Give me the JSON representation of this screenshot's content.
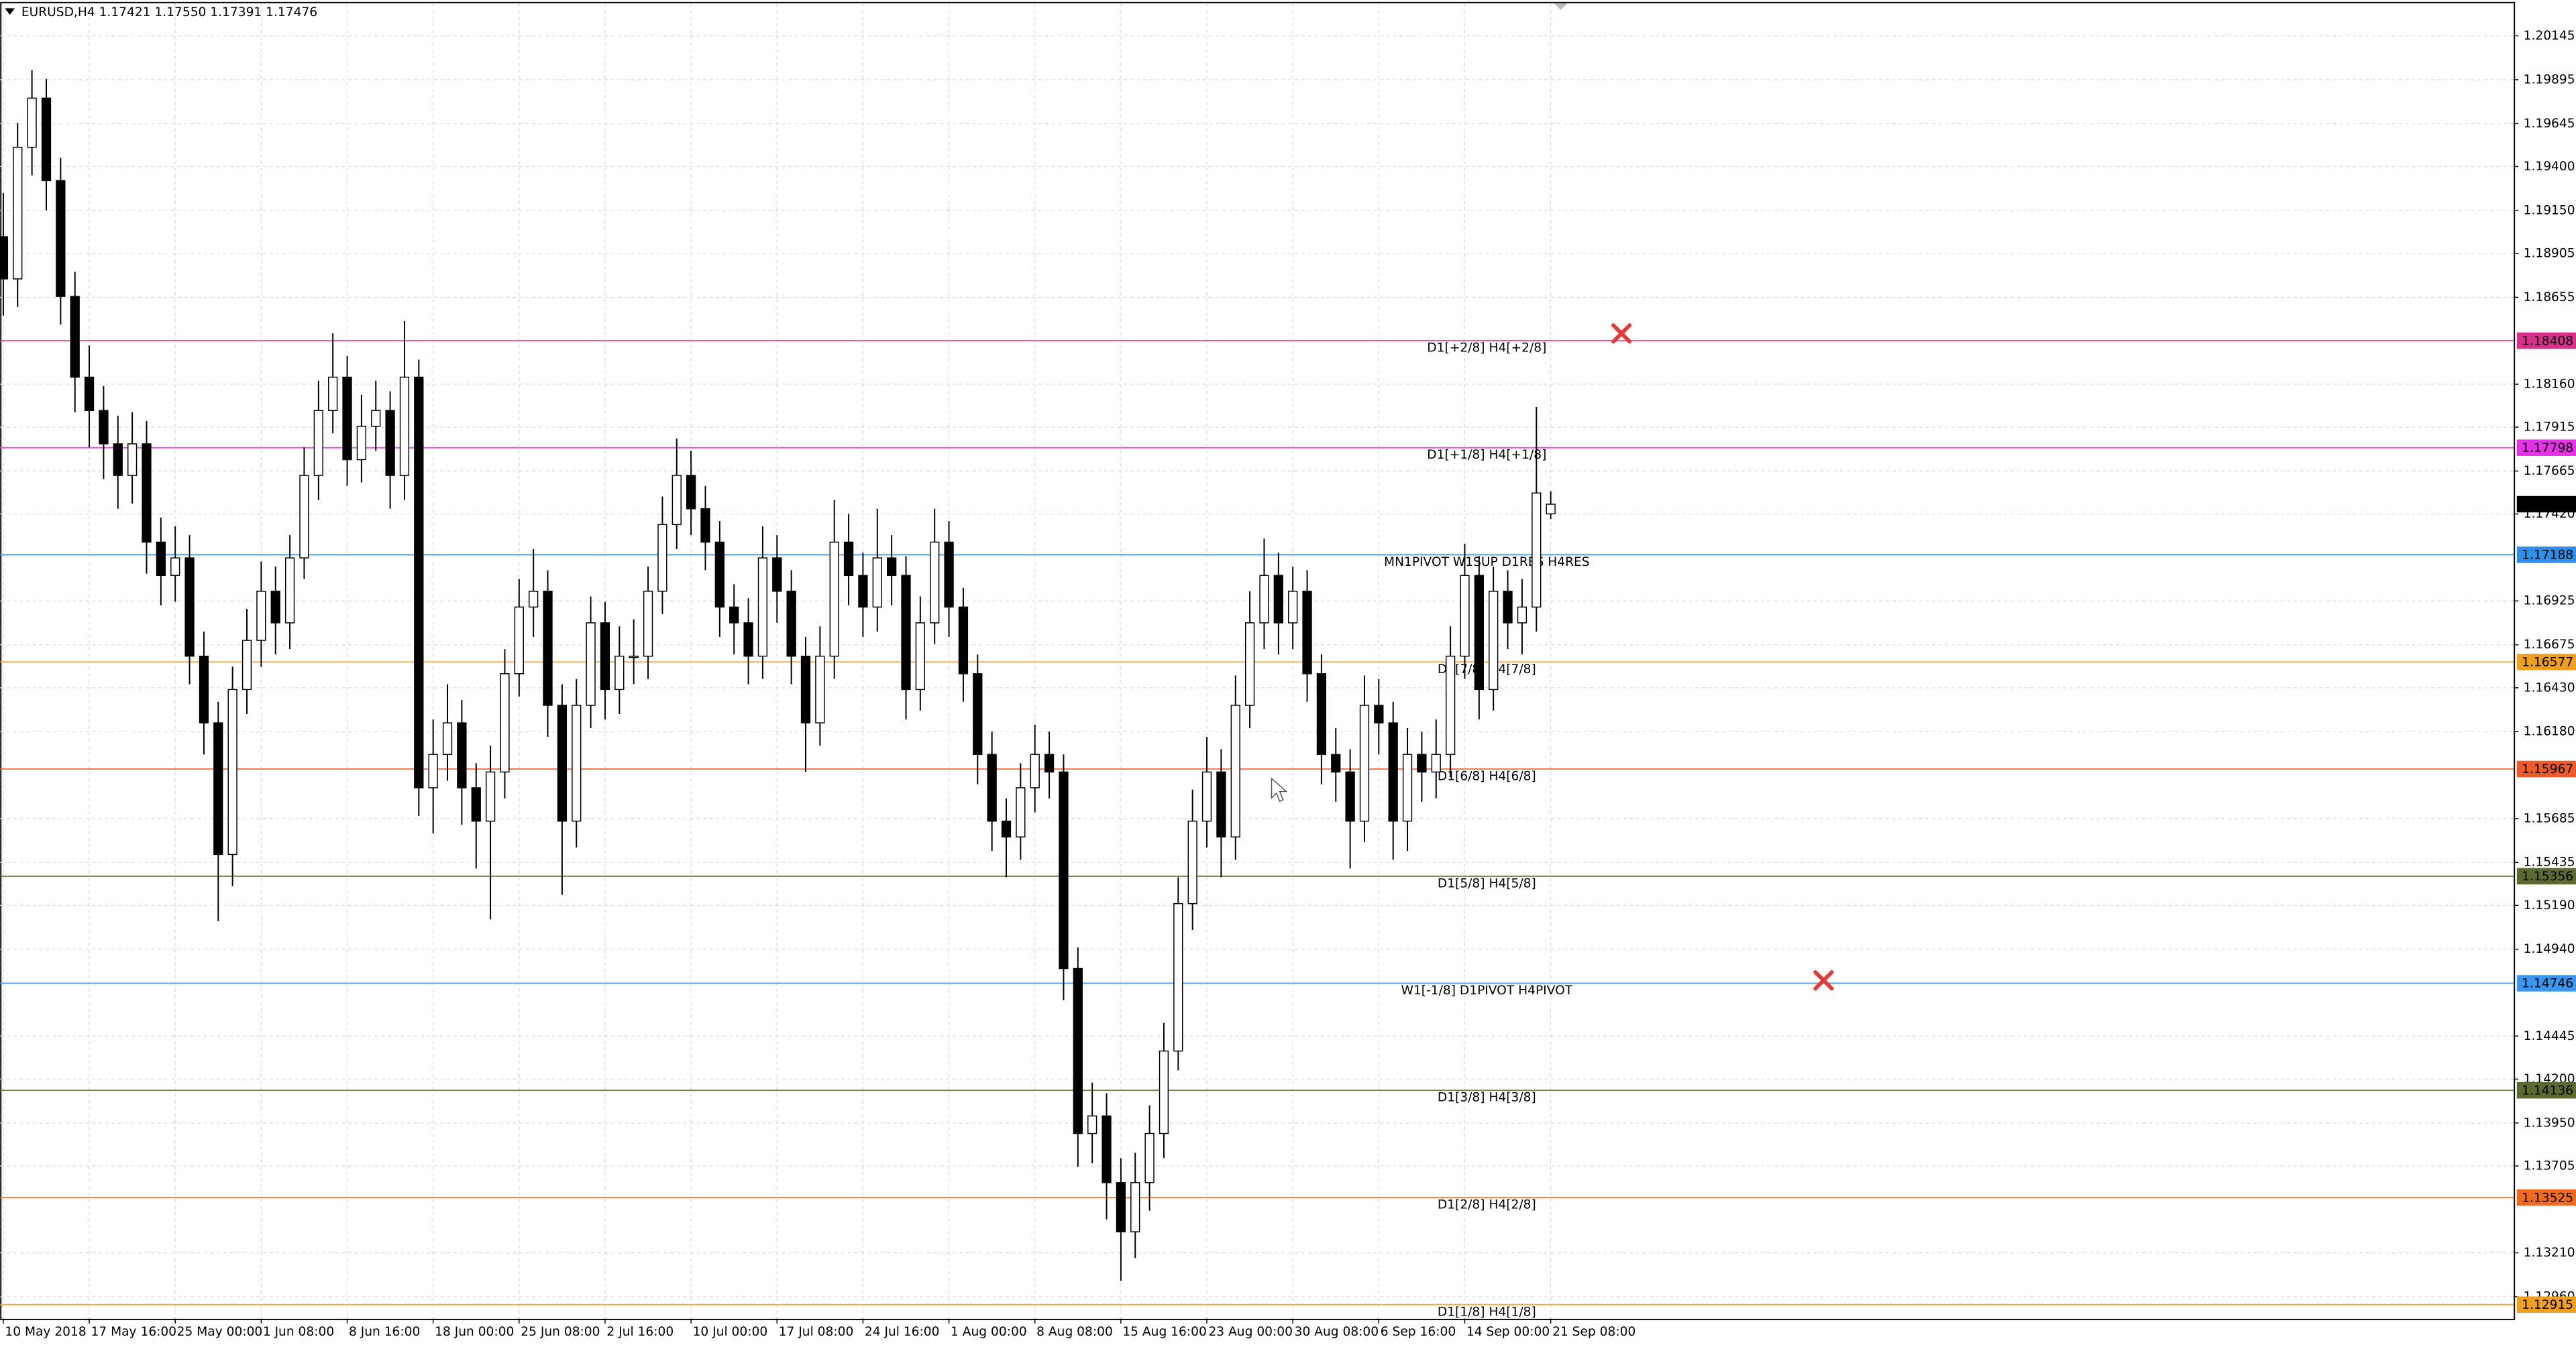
{
  "chart_data": {
    "type": "candlestick",
    "title": "EURUSD,H4  1.17421 1.17550 1.17391 1.17476",
    "open": [
      1.19,
      1.1876,
      1.1951,
      1.1979,
      1.1932,
      1.1866,
      1.182,
      1.1801,
      1.1782,
      1.1764,
      1.1782,
      1.1726,
      1.1707,
      1.1717,
      1.1661,
      1.1623,
      1.1548,
      1.1642,
      1.167,
      1.1698,
      1.168,
      1.1717,
      1.1764,
      1.1801,
      1.182,
      1.1773,
      1.1792,
      1.1801,
      1.1764,
      1.182,
      1.1586,
      1.1605,
      1.1623,
      1.1586,
      1.1567,
      1.1595,
      1.1651,
      1.1689,
      1.1698,
      1.1633,
      1.1567,
      1.1633,
      1.168,
      1.1642,
      1.1661,
      1.1661,
      1.1698,
      1.1736,
      1.1764,
      1.1745,
      1.1726,
      1.1689,
      1.168,
      1.1661,
      1.1717,
      1.1698,
      1.1661,
      1.1623,
      1.1661,
      1.1726,
      1.1707,
      1.1689,
      1.1717,
      1.1707,
      1.1642,
      1.168,
      1.1726,
      1.1689,
      1.1651,
      1.1605,
      1.1567,
      1.1558,
      1.1586,
      1.1605,
      1.1595,
      1.1483,
      1.1389,
      1.1399,
      1.1361,
      1.1333,
      1.1361,
      1.1389,
      1.1436,
      1.152,
      1.1567,
      1.1595,
      1.1558,
      1.1633,
      1.168,
      1.1707,
      1.168,
      1.1698,
      1.1651,
      1.1605,
      1.1595,
      1.1567,
      1.1633,
      1.1623,
      1.1567,
      1.1605,
      1.1595,
      1.1605,
      1.1661,
      1.1707,
      1.1642,
      1.1698,
      1.168,
      1.1689,
      1.17421
    ],
    "high": [
      1.1925,
      1.1965,
      1.1995,
      1.199,
      1.1945,
      1.188,
      1.1838,
      1.1815,
      1.1798,
      1.18,
      1.1795,
      1.174,
      1.1735,
      1.173,
      1.1675,
      1.1635,
      1.1655,
      1.1688,
      1.1715,
      1.1712,
      1.173,
      1.178,
      1.1818,
      1.1845,
      1.1832,
      1.181,
      1.1818,
      1.1812,
      1.1852,
      1.183,
      1.1625,
      1.1645,
      1.1636,
      1.16,
      1.161,
      1.1665,
      1.1705,
      1.1722,
      1.171,
      1.1645,
      1.1648,
      1.1695,
      1.1692,
      1.1678,
      1.1682,
      1.1712,
      1.1752,
      1.1785,
      1.1778,
      1.1758,
      1.1738,
      1.1702,
      1.1694,
      1.1735,
      1.173,
      1.171,
      1.1672,
      1.1678,
      1.175,
      1.1742,
      1.172,
      1.1745,
      1.173,
      1.1718,
      1.1695,
      1.1745,
      1.1738,
      1.17,
      1.1662,
      1.1618,
      1.158,
      1.16,
      1.1622,
      1.1618,
      1.1605,
      1.1495,
      1.1418,
      1.1412,
      1.1375,
      1.1378,
      1.1405,
      1.1452,
      1.1535,
      1.1585,
      1.1615,
      1.1608,
      1.165,
      1.1698,
      1.1728,
      1.172,
      1.1712,
      1.171,
      1.1662,
      1.162,
      1.1608,
      1.165,
      1.1648,
      1.1635,
      1.162,
      1.1618,
      1.1625,
      1.1678,
      1.1725,
      1.1718,
      1.1712,
      1.171,
      1.1705,
      1.1803,
      1.1755
    ],
    "low": [
      1.1855,
      1.186,
      1.1935,
      1.1915,
      1.185,
      1.18,
      1.178,
      1.1762,
      1.1745,
      1.1748,
      1.1708,
      1.169,
      1.1692,
      1.1645,
      1.1605,
      1.151,
      1.153,
      1.1628,
      1.1655,
      1.1662,
      1.1665,
      1.1705,
      1.175,
      1.1788,
      1.1758,
      1.176,
      1.1778,
      1.1745,
      1.175,
      1.157,
      1.156,
      1.159,
      1.1565,
      1.154,
      1.1511,
      1.158,
      1.1638,
      1.1672,
      1.1615,
      1.1525,
      1.1552,
      1.162,
      1.1625,
      1.1628,
      1.1645,
      1.1648,
      1.1685,
      1.1722,
      1.173,
      1.171,
      1.1672,
      1.1662,
      1.1645,
      1.1648,
      1.168,
      1.1645,
      1.1595,
      1.161,
      1.1648,
      1.169,
      1.1672,
      1.1675,
      1.169,
      1.1625,
      1.163,
      1.1668,
      1.1672,
      1.1635,
      1.1588,
      1.155,
      1.1535,
      1.1545,
      1.1572,
      1.158,
      1.1465,
      1.137,
      1.1372,
      1.134,
      1.1305,
      1.1318,
      1.1345,
      1.1375,
      1.1425,
      1.1505,
      1.1552,
      1.1535,
      1.1545,
      1.162,
      1.1665,
      1.1662,
      1.1665,
      1.1635,
      1.1588,
      1.1578,
      1.154,
      1.1555,
      1.1605,
      1.1545,
      1.155,
      1.1578,
      1.158,
      1.1592,
      1.1648,
      1.1625,
      1.163,
      1.1665,
      1.1662,
      1.1675,
      1.17391
    ],
    "close": [
      1.1876,
      1.1951,
      1.1979,
      1.1932,
      1.1866,
      1.182,
      1.1801,
      1.1782,
      1.1764,
      1.1782,
      1.1726,
      1.1707,
      1.1717,
      1.1661,
      1.1623,
      1.1548,
      1.1642,
      1.167,
      1.1698,
      1.168,
      1.1717,
      1.1764,
      1.1801,
      1.182,
      1.1773,
      1.1792,
      1.1801,
      1.1764,
      1.182,
      1.1586,
      1.1605,
      1.1623,
      1.1586,
      1.1567,
      1.1595,
      1.1651,
      1.1689,
      1.1698,
      1.1633,
      1.1567,
      1.1633,
      1.168,
      1.1642,
      1.1661,
      1.1661,
      1.1698,
      1.1736,
      1.1764,
      1.1745,
      1.1726,
      1.1689,
      1.168,
      1.1661,
      1.1717,
      1.1698,
      1.1661,
      1.1623,
      1.1661,
      1.1726,
      1.1707,
      1.1689,
      1.1717,
      1.1707,
      1.1642,
      1.168,
      1.1726,
      1.1689,
      1.1651,
      1.1605,
      1.1567,
      1.1558,
      1.1586,
      1.1605,
      1.1595,
      1.1483,
      1.1389,
      1.1399,
      1.1361,
      1.1333,
      1.1361,
      1.1389,
      1.1436,
      1.152,
      1.1567,
      1.1595,
      1.1558,
      1.1633,
      1.168,
      1.1707,
      1.168,
      1.1698,
      1.1651,
      1.1605,
      1.1595,
      1.1567,
      1.1633,
      1.1623,
      1.1567,
      1.1605,
      1.1595,
      1.1605,
      1.1661,
      1.1707,
      1.1642,
      1.1698,
      1.168,
      1.1689,
      1.1754,
      1.17476
    ],
    "bull_color": "#ffffff",
    "bear_color": "#000000",
    "wick_color": "#000000",
    "xlim": [
      -0.23,
      175.2
    ],
    "xticks": [
      {
        "value": 0,
        "label": "10 May 2018"
      },
      {
        "value": 6,
        "label": "17 May 16:00"
      },
      {
        "value": 12,
        "label": "25 May 00:00"
      },
      {
        "value": 18,
        "label": "1 Jun 08:00"
      },
      {
        "value": 24,
        "label": "8 Jun 16:00"
      },
      {
        "value": 30,
        "label": "18 Jun 00:00"
      },
      {
        "value": 36,
        "label": "25 Jun 08:00"
      },
      {
        "value": 42,
        "label": "2 Jul 16:00"
      },
      {
        "value": 48,
        "label": "10 Jul 00:00"
      },
      {
        "value": 54,
        "label": "17 Jul 08:00"
      },
      {
        "value": 60,
        "label": "24 Jul 16:00"
      },
      {
        "value": 66,
        "label": "1 Aug 00:00"
      },
      {
        "value": 72,
        "label": "8 Aug 08:00"
      },
      {
        "value": 78,
        "label": "15 Aug 16:00"
      },
      {
        "value": 84,
        "label": "23 Aug 00:00"
      },
      {
        "value": 90,
        "label": "30 Aug 08:00"
      },
      {
        "value": 96,
        "label": "6 Sep 16:00"
      },
      {
        "value": 102,
        "label": "14 Sep 00:00"
      },
      {
        "value": 108,
        "label": "21 Sep 08:00"
      }
    ],
    "ylim": [
      1.12835,
      1.2033
    ],
    "yticks": [
      1.20145,
      1.19895,
      1.19645,
      {
        "value": 1.194,
        "label": "1.19400"
      },
      {
        "value": 1.1915,
        "label": "1.19150"
      },
      1.18905,
      1.18655,
      {
        "value": 1.1816,
        "label": "1.18160"
      },
      1.17915,
      1.17665,
      {
        "value": 1.1742,
        "label": "1.17420"
      },
      1.16925,
      1.16675,
      {
        "value": 1.1643,
        "label": "1.16430"
      },
      {
        "value": 1.1618,
        "label": "1.16180"
      },
      1.15685,
      1.15435,
      {
        "value": 1.1519,
        "label": "1.15190"
      },
      {
        "value": 1.1494,
        "label": "1.14940"
      },
      1.14445,
      {
        "value": 1.142,
        "label": "1.14200"
      },
      {
        "value": 1.1395,
        "label": "1.13950"
      },
      1.13705,
      {
        "value": 1.1321,
        "label": "1.13210"
      },
      {
        "value": 1.1296,
        "label": "1.12960"
      }
    ],
    "grid": true,
    "levels": [
      {
        "value": 1.18408,
        "label": "D1[+2/8] H4[+2/8]",
        "color": "#d6308a"
      },
      {
        "value": 1.17798,
        "label": "D1[+1/8] H4[+1/8]",
        "color": "#e632e6"
      },
      {
        "value": 1.17188,
        "label": "MN1PIVOT W1SUP D1RES H4RES",
        "color": "#2f8fe8"
      },
      {
        "value": 1.16577,
        "label": "D1[7/8] H4[7/8]",
        "color": "#f0a020"
      },
      {
        "value": 1.15967,
        "label": "D1[6/8] H4[6/8]",
        "color": "#f05a28"
      },
      {
        "value": 1.15356,
        "label": "D1[5/8] H4[5/8]",
        "color": "#5b6b30"
      },
      {
        "value": 1.14746,
        "label": "W1[-1/8] D1PIVOT H4PIVOT",
        "color": "#3a96ee"
      },
      {
        "value": 1.14136,
        "label": "D1[3/8] H4[3/8]",
        "color": "#5b6b30"
      },
      {
        "value": 1.13525,
        "label": "D1[2/8] H4[2/8]",
        "color": "#f06a20"
      },
      {
        "value": 1.12915,
        "label": "D1[1/8] H4[1/8]",
        "color": "#f0a020"
      }
    ],
    "current_price": 1.17476
  }
}
